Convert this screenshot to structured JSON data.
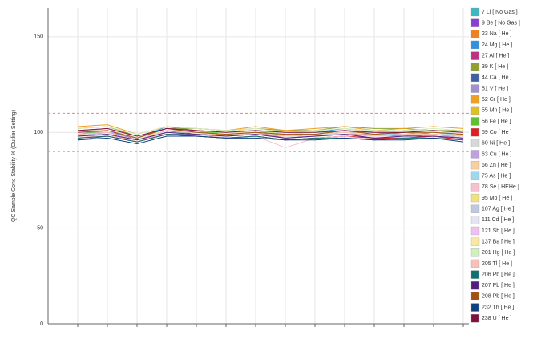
{
  "chart_data": {
    "type": "line",
    "y_label": "QC Sample Conc Stability % (Outlier Setting)",
    "categories": [
      null,
      null,
      null,
      null,
      null,
      null,
      null,
      null,
      null,
      null,
      null,
      null,
      null,
      null
    ],
    "ylim": [
      0,
      165
    ],
    "yticks": [
      0,
      50,
      100,
      150
    ],
    "grid": true,
    "reference_lines": [
      110,
      90
    ],
    "reference_color": "#f08080",
    "legend": "right",
    "series": [
      {
        "name": "7 Li [ No Gas ]",
        "color": "#3cb8c0",
        "values": [
          98,
          100,
          97,
          102,
          101,
          100,
          101,
          99,
          100,
          101,
          100,
          99,
          100,
          99
        ]
      },
      {
        "name": "9 Be [ No Gas ]",
        "color": "#8a3cd8",
        "values": [
          100,
          101,
          96,
          101,
          100,
          99,
          100,
          98,
          99,
          100,
          99,
          100,
          99,
          98
        ]
      },
      {
        "name": "23 Na [ He ]",
        "color": "#f08020",
        "values": [
          97,
          99,
          95,
          100,
          101,
          98,
          99,
          97,
          98,
          99,
          98,
          98,
          99,
          97
        ]
      },
      {
        "name": "24 Mg [ He ]",
        "color": "#3090e0",
        "values": [
          101,
          102,
          97,
          103,
          101,
          100,
          101,
          100,
          100,
          102,
          100,
          101,
          101,
          100
        ]
      },
      {
        "name": "27 Al [ He ]",
        "color": "#c03080",
        "values": [
          99,
          100,
          96,
          101,
          99,
          98,
          100,
          97,
          98,
          99,
          99,
          98,
          99,
          98
        ]
      },
      {
        "name": "39 K [ He ]",
        "color": "#90a030",
        "values": [
          102,
          103,
          98,
          102,
          102,
          101,
          102,
          101,
          101,
          103,
          102,
          102,
          101,
          101
        ]
      },
      {
        "name": "44 Ca [ He ]",
        "color": "#4060a0",
        "values": [
          96,
          98,
          95,
          99,
          99,
          97,
          98,
          96,
          97,
          98,
          97,
          97,
          98,
          96
        ]
      },
      {
        "name": "51 V [ He ]",
        "color": "#a090d0",
        "values": [
          100,
          100,
          97,
          101,
          100,
          99,
          101,
          99,
          99,
          100,
          100,
          99,
          100,
          99
        ]
      },
      {
        "name": "52 Cr [ He ]",
        "color": "#f0a020",
        "values": [
          103,
          104,
          99,
          103,
          102,
          101,
          103,
          101,
          102,
          103,
          101,
          102,
          103,
          102
        ]
      },
      {
        "name": "55 Mn [ He ]",
        "color": "#e0c020",
        "values": [
          98,
          99,
          96,
          100,
          100,
          98,
          99,
          98,
          98,
          99,
          98,
          99,
          99,
          98
        ]
      },
      {
        "name": "56 Fe [ He ]",
        "color": "#60c030",
        "values": [
          99,
          101,
          97,
          102,
          100,
          100,
          101,
          98,
          99,
          101,
          99,
          100,
          100,
          99
        ]
      },
      {
        "name": "59 Co [ He ]",
        "color": "#e02020",
        "values": [
          97,
          98,
          95,
          99,
          98,
          97,
          98,
          96,
          97,
          98,
          97,
          97,
          98,
          96
        ]
      },
      {
        "name": "60 Ni [ He ]",
        "color": "#d8d8d8",
        "values": [
          100,
          102,
          97,
          101,
          101,
          100,
          100,
          99,
          100,
          101,
          100,
          100,
          100,
          100
        ]
      },
      {
        "name": "63 Cu [ He ]",
        "color": "#c0a0e0",
        "values": [
          98,
          100,
          96,
          100,
          99,
          98,
          99,
          97,
          98,
          99,
          98,
          98,
          99,
          97
        ]
      },
      {
        "name": "66 Zn [ He ]",
        "color": "#f8d0a0",
        "values": [
          101,
          101,
          98,
          102,
          101,
          100,
          102,
          100,
          101,
          102,
          100,
          101,
          101,
          100
        ]
      },
      {
        "name": "75 As [ He ]",
        "color": "#a0d8f0",
        "values": [
          99,
          100,
          96,
          101,
          100,
          99,
          100,
          98,
          99,
          100,
          99,
          99,
          100,
          98
        ]
      },
      {
        "name": "78 Se [ HEHe ]",
        "color": "#f8c0d0",
        "values": [
          97,
          99,
          95,
          100,
          99,
          97,
          98,
          92,
          97,
          98,
          96,
          97,
          97,
          96
        ]
      },
      {
        "name": "95 Mo [ He ]",
        "color": "#f0e080",
        "values": [
          100,
          101,
          97,
          101,
          100,
          99,
          101,
          99,
          100,
          101,
          99,
          100,
          100,
          99
        ]
      },
      {
        "name": "107 Ag [ He ]",
        "color": "#c0c8e0",
        "values": [
          99,
          100,
          96,
          100,
          100,
          98,
          99,
          98,
          98,
          100,
          98,
          99,
          99,
          98
        ]
      },
      {
        "name": "111 Cd [ He ]",
        "color": "#e4e4f0",
        "values": [
          101,
          102,
          97,
          102,
          101,
          100,
          101,
          100,
          100,
          101,
          100,
          101,
          101,
          100
        ]
      },
      {
        "name": "121 Sb [ He ]",
        "color": "#f0c0f0",
        "values": [
          98,
          99,
          96,
          100,
          99,
          98,
          99,
          97,
          98,
          99,
          98,
          98,
          98,
          97
        ]
      },
      {
        "name": "137 Ba [ He ]",
        "color": "#f8e8a0",
        "values": [
          100,
          101,
          97,
          101,
          100,
          99,
          100,
          99,
          99,
          100,
          99,
          100,
          100,
          99
        ]
      },
      {
        "name": "201 Hg [ He ]",
        "color": "#d0f0c0",
        "values": [
          102,
          103,
          99,
          103,
          102,
          101,
          102,
          100,
          101,
          102,
          101,
          101,
          102,
          101
        ]
      },
      {
        "name": "205 Tl [ He ]",
        "color": "#f8c0b8",
        "values": [
          99,
          100,
          96,
          101,
          100,
          98,
          100,
          98,
          99,
          100,
          98,
          99,
          99,
          98
        ]
      },
      {
        "name": "206 Pb [ He ]",
        "color": "#107070",
        "values": [
          97,
          98,
          95,
          99,
          98,
          97,
          98,
          96,
          97,
          97,
          96,
          97,
          97,
          96
        ]
      },
      {
        "name": "207 Pb [ He ]",
        "color": "#502080",
        "values": [
          98,
          99,
          96,
          100,
          99,
          98,
          99,
          97,
          98,
          99,
          97,
          98,
          98,
          97
        ]
      },
      {
        "name": "208 Pb [ He ]",
        "color": "#a05010",
        "values": [
          100,
          101,
          97,
          102,
          100,
          99,
          100,
          99,
          99,
          101,
          99,
          100,
          100,
          99
        ]
      },
      {
        "name": "232 Th [ He ]",
        "color": "#104080",
        "values": [
          96,
          97,
          94,
          98,
          98,
          97,
          97,
          96,
          96,
          97,
          96,
          96,
          97,
          95
        ]
      },
      {
        "name": "238 U [ He ]",
        "color": "#801040",
        "values": [
          101,
          102,
          98,
          102,
          101,
          100,
          101,
          100,
          100,
          101,
          100,
          100,
          101,
          100
        ]
      }
    ]
  }
}
